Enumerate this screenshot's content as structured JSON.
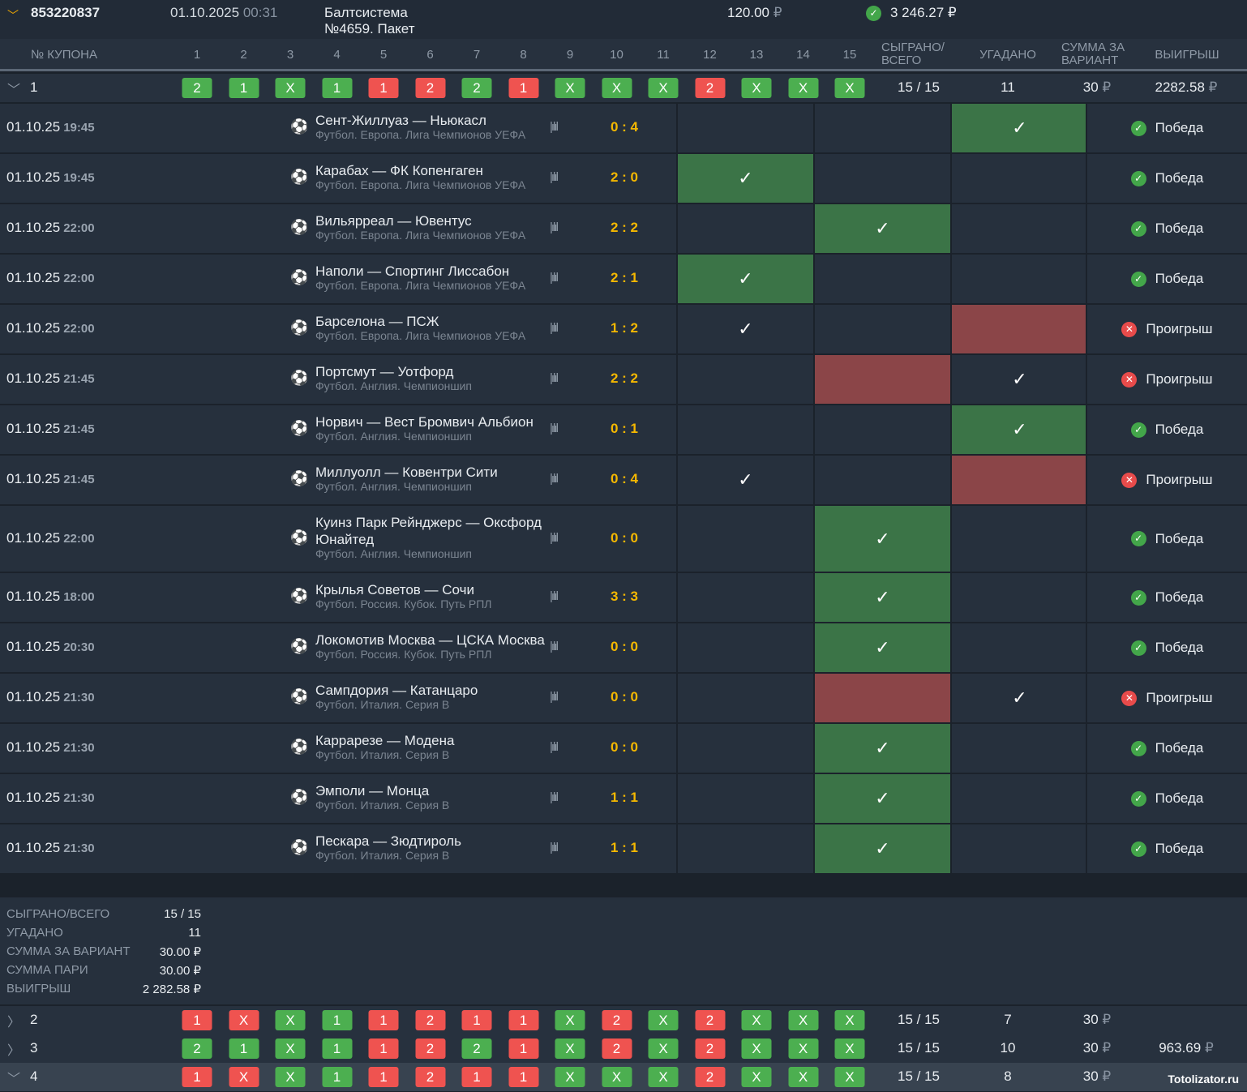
{
  "header": {
    "coupon_id": "853220837",
    "date": "01.10.2025",
    "time": "00:31",
    "name_line1": "Балтсистема",
    "name_line2": "№4659. Пакет",
    "stake": "120.00",
    "currency": "₽",
    "total": "3 246.27",
    "status_icon": "check-circle"
  },
  "columns": {
    "coupon": "№ КУПОНА",
    "events": [
      "1",
      "2",
      "3",
      "4",
      "5",
      "6",
      "7",
      "8",
      "9",
      "10",
      "11",
      "12",
      "13",
      "14",
      "15"
    ],
    "played": [
      "СЫГРАНО/",
      "ВСЕГО"
    ],
    "guessed": "УГАДАНО",
    "sum": [
      "СУММА ЗА",
      "ВАРИАНТ"
    ],
    "win": "ВЫИГРЫШ"
  },
  "coupons": [
    {
      "num": "1",
      "expanded": true,
      "picks": [
        "2",
        "1",
        "X",
        "1",
        "1",
        "2",
        "2",
        "1",
        "X",
        "X",
        "X",
        "2",
        "X",
        "X",
        "X"
      ],
      "correct": [
        1,
        1,
        1,
        1,
        0,
        0,
        1,
        0,
        1,
        1,
        1,
        0,
        1,
        1,
        1
      ],
      "played": "15 / 15",
      "guessed": "11",
      "sum": "30",
      "win": "2282.58"
    },
    {
      "num": "2",
      "expanded": false,
      "picks": [
        "1",
        "X",
        "X",
        "1",
        "1",
        "2",
        "1",
        "1",
        "X",
        "2",
        "X",
        "2",
        "X",
        "X",
        "X"
      ],
      "correct": [
        0,
        0,
        1,
        1,
        0,
        0,
        0,
        0,
        1,
        0,
        1,
        0,
        1,
        1,
        1
      ],
      "played": "15 / 15",
      "guessed": "7",
      "sum": "30",
      "win": ""
    },
    {
      "num": "3",
      "expanded": false,
      "picks": [
        "2",
        "1",
        "X",
        "1",
        "1",
        "2",
        "2",
        "1",
        "X",
        "2",
        "X",
        "2",
        "X",
        "X",
        "X"
      ],
      "correct": [
        1,
        1,
        1,
        1,
        0,
        0,
        1,
        0,
        1,
        0,
        1,
        0,
        1,
        1,
        1
      ],
      "played": "15 / 15",
      "guessed": "10",
      "sum": "30",
      "win": "963.69"
    },
    {
      "num": "4",
      "expanded": true,
      "picks": [
        "1",
        "X",
        "X",
        "1",
        "1",
        "2",
        "1",
        "1",
        "X",
        "X",
        "X",
        "2",
        "X",
        "X",
        "X"
      ],
      "correct": [
        0,
        0,
        1,
        1,
        0,
        0,
        0,
        0,
        1,
        1,
        1,
        0,
        1,
        1,
        1
      ],
      "played": "15 / 15",
      "guessed": "8",
      "sum": "30",
      "win": ""
    }
  ],
  "matches": [
    {
      "date": "01.10.25",
      "time": "19:45",
      "title": "Сент-Жиллуаз — Ньюкасл",
      "league": "Футбол. Европа. Лига Чемпионов УЕФА",
      "score": "0 : 4",
      "pick": "2",
      "result": "2",
      "status": "Победа"
    },
    {
      "date": "01.10.25",
      "time": "19:45",
      "title": "Карабах — ФК Копенгаген",
      "league": "Футбол. Европа. Лига Чемпионов УЕФА",
      "score": "2 : 0",
      "pick": "1",
      "result": "1",
      "status": "Победа"
    },
    {
      "date": "01.10.25",
      "time": "22:00",
      "title": "Вильярреал — Ювентус",
      "league": "Футбол. Европа. Лига Чемпионов УЕФА",
      "score": "2 : 2",
      "pick": "X",
      "result": "X",
      "status": "Победа"
    },
    {
      "date": "01.10.25",
      "time": "22:00",
      "title": "Наполи — Спортинг Лиссабон",
      "league": "Футбол. Европа. Лига Чемпионов УЕФА",
      "score": "2 : 1",
      "pick": "1",
      "result": "1",
      "status": "Победа"
    },
    {
      "date": "01.10.25",
      "time": "22:00",
      "title": "Барселона — ПСЖ",
      "league": "Футбол. Европа. Лига Чемпионов УЕФА",
      "score": "1 : 2",
      "pick": "1",
      "result": "2",
      "status": "Проигрыш"
    },
    {
      "date": "01.10.25",
      "time": "21:45",
      "title": "Портсмут — Уотфорд",
      "league": "Футбол. Англия. Чемпионшип",
      "score": "2 : 2",
      "pick": "2",
      "result": "X",
      "status": "Проигрыш"
    },
    {
      "date": "01.10.25",
      "time": "21:45",
      "title": "Норвич — Вест Бромвич Альбион",
      "league": "Футбол. Англия. Чемпионшип",
      "score": "0 : 1",
      "pick": "2",
      "result": "2",
      "status": "Победа"
    },
    {
      "date": "01.10.25",
      "time": "21:45",
      "title": "Миллуолл — Ковентри Сити",
      "league": "Футбол. Англия. Чемпионшип",
      "score": "0 : 4",
      "pick": "1",
      "result": "2",
      "status": "Проигрыш"
    },
    {
      "date": "01.10.25",
      "time": "22:00",
      "title": "Куинз Парк Рейнджерс — Оксфорд Юнайтед",
      "league": "Футбол. Англия. Чемпионшип",
      "score": "0 : 0",
      "pick": "X",
      "result": "X",
      "status": "Победа"
    },
    {
      "date": "01.10.25",
      "time": "18:00",
      "title": "Крылья Советов — Сочи",
      "league": "Футбол. Россия. Кубок. Путь РПЛ",
      "score": "3 : 3",
      "pick": "X",
      "result": "X",
      "status": "Победа"
    },
    {
      "date": "01.10.25",
      "time": "20:30",
      "title": "Локомотив Москва — ЦСКА Москва",
      "league": "Футбол. Россия. Кубок. Путь РПЛ",
      "score": "0 : 0",
      "pick": "X",
      "result": "X",
      "status": "Победа"
    },
    {
      "date": "01.10.25",
      "time": "21:30",
      "title": "Сампдория — Катанцаро",
      "league": "Футбол. Италия. Серия B",
      "score": "0 : 0",
      "pick": "2",
      "result": "X",
      "status": "Проигрыш"
    },
    {
      "date": "01.10.25",
      "time": "21:30",
      "title": "Каррарезе — Модена",
      "league": "Футбол. Италия. Серия B",
      "score": "0 : 0",
      "pick": "X",
      "result": "X",
      "status": "Победа"
    },
    {
      "date": "01.10.25",
      "time": "21:30",
      "title": "Эмполи — Монца",
      "league": "Футбол. Италия. Серия B",
      "score": "1 : 1",
      "pick": "X",
      "result": "X",
      "status": "Победа"
    },
    {
      "date": "01.10.25",
      "time": "21:30",
      "title": "Пескара — Зюдтироль",
      "league": "Футбол. Италия. Серия B",
      "score": "1 : 1",
      "pick": "X",
      "result": "X",
      "status": "Победа"
    }
  ],
  "summary": [
    {
      "label": "СЫГРАНО/ВСЕГО",
      "value": "15 / 15"
    },
    {
      "label": "УГАДАНО",
      "value": "11"
    },
    {
      "label": "СУММА ЗА ВАРИАНТ",
      "value": "30.00 ₽"
    },
    {
      "label": "СУММА ПАРИ",
      "value": "30.00 ₽"
    },
    {
      "label": "ВЫИГРЫШ",
      "value": "2 282.58 ₽"
    }
  ],
  "watermark": "Totolizator.ru",
  "colors": {
    "badge_green": "#4caf50",
    "badge_red": "#ef5350",
    "score": "#f5b800",
    "cell_green": "#3b7447",
    "cell_red": "#8b4548"
  }
}
